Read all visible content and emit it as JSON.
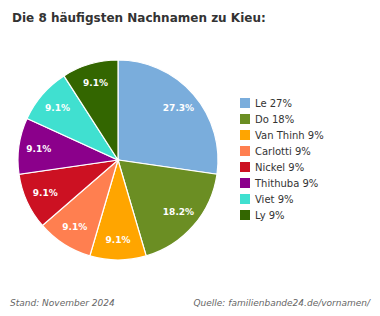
{
  "chart_data": {
    "type": "pie",
    "title": "Die 8 häufigsten Nachnamen zu Kieu:",
    "categories": [
      "Le 27%",
      "Do 18%",
      "Van Thinh 9%",
      "Carlotti 9%",
      "Nickel 9%",
      "Thithuba 9%",
      "Viet 9%",
      "Ly 9%"
    ],
    "values": [
      27.3,
      18.2,
      9.1,
      9.1,
      9.1,
      9.1,
      9.1,
      9.1
    ],
    "value_labels": [
      "27.3%",
      "18.2%",
      "9.1%",
      "9.1%",
      "9.1%",
      "9.1%",
      "9.1%",
      "9.1%"
    ],
    "colors": [
      "#7aaddc",
      "#6b8e23",
      "#ffa500",
      "#ff7f50",
      "#cc1122",
      "#8b008b",
      "#40e0d0",
      "#336600"
    ],
    "data_labels": true,
    "legend": "right",
    "annotations": [
      "Stand: November 2024",
      "Quelle: familienbande24.de/vornamen/"
    ]
  }
}
